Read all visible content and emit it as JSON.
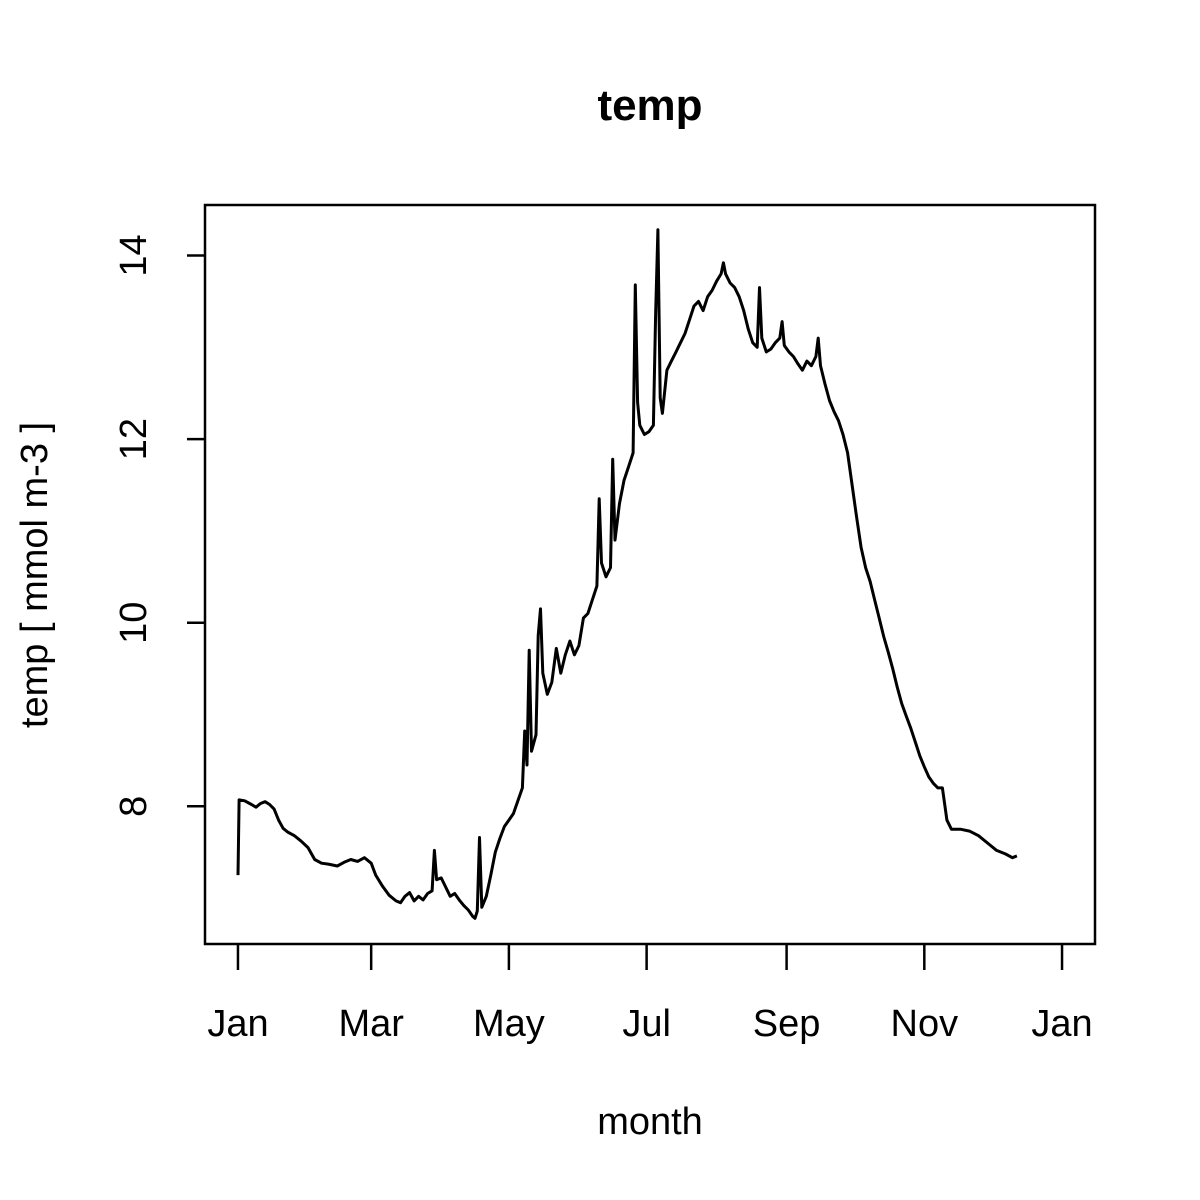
{
  "chart_data": {
    "type": "line",
    "title": "temp",
    "xlabel": "month",
    "ylabel": "temp [ mmol m-3 ]",
    "x_ticks": [
      {
        "label": "Jan",
        "day": 0
      },
      {
        "label": "Mar",
        "day": 59
      },
      {
        "label": "May",
        "day": 120
      },
      {
        "label": "Jul",
        "day": 181
      },
      {
        "label": "Sep",
        "day": 243
      },
      {
        "label": "Nov",
        "day": 304
      },
      {
        "label": "Jan",
        "day": 365
      }
    ],
    "y_ticks": [
      8,
      10,
      12,
      14
    ],
    "xlim": [
      -14.6,
      379.6
    ],
    "ylim": [
      6.5,
      14.55
    ],
    "grid": false,
    "legend": "none",
    "line_color": "#000000",
    "series": [
      {
        "points": [
          [
            0,
            7.25
          ],
          [
            0.5,
            8.07
          ],
          [
            3,
            8.06
          ],
          [
            6,
            8.02
          ],
          [
            8,
            7.99
          ],
          [
            10,
            8.03
          ],
          [
            12,
            8.05
          ],
          [
            14,
            8.02
          ],
          [
            16,
            7.97
          ],
          [
            18,
            7.85
          ],
          [
            20,
            7.76
          ],
          [
            22,
            7.72
          ],
          [
            25,
            7.68
          ],
          [
            28,
            7.62
          ],
          [
            31,
            7.55
          ],
          [
            34,
            7.42
          ],
          [
            37,
            7.38
          ],
          [
            40,
            7.37
          ],
          [
            44,
            7.35
          ],
          [
            47,
            7.39
          ],
          [
            50,
            7.42
          ],
          [
            53,
            7.4
          ],
          [
            56,
            7.44
          ],
          [
            59,
            7.38
          ],
          [
            61,
            7.25
          ],
          [
            64,
            7.13
          ],
          [
            67,
            7.03
          ],
          [
            70,
            6.97
          ],
          [
            72,
            6.95
          ],
          [
            74,
            7.02
          ],
          [
            76,
            7.06
          ],
          [
            78,
            6.97
          ],
          [
            80,
            7.02
          ],
          [
            82,
            6.98
          ],
          [
            84,
            7.05
          ],
          [
            86,
            7.08
          ],
          [
            87,
            7.52
          ],
          [
            88,
            7.2
          ],
          [
            90,
            7.22
          ],
          [
            92,
            7.12
          ],
          [
            94,
            7.02
          ],
          [
            96,
            7.05
          ],
          [
            98,
            6.98
          ],
          [
            100,
            6.92
          ],
          [
            102,
            6.87
          ],
          [
            104,
            6.8
          ],
          [
            105,
            6.78
          ],
          [
            106,
            6.86
          ],
          [
            107,
            7.66
          ],
          [
            108,
            6.9
          ],
          [
            110,
            7.02
          ],
          [
            112,
            7.25
          ],
          [
            114,
            7.5
          ],
          [
            116,
            7.65
          ],
          [
            118,
            7.78
          ],
          [
            120,
            7.85
          ],
          [
            122,
            7.92
          ],
          [
            124,
            8.06
          ],
          [
            126,
            8.2
          ],
          [
            127,
            8.82
          ],
          [
            128,
            8.45
          ],
          [
            129,
            9.7
          ],
          [
            130,
            8.6
          ],
          [
            132,
            8.78
          ],
          [
            133,
            9.86
          ],
          [
            134,
            10.15
          ],
          [
            135,
            9.45
          ],
          [
            137,
            9.22
          ],
          [
            139,
            9.35
          ],
          [
            141,
            9.72
          ],
          [
            143,
            9.45
          ],
          [
            145,
            9.65
          ],
          [
            147,
            9.8
          ],
          [
            149,
            9.65
          ],
          [
            151,
            9.75
          ],
          [
            153,
            10.05
          ],
          [
            155,
            10.1
          ],
          [
            157,
            10.25
          ],
          [
            159,
            10.4
          ],
          [
            160,
            11.35
          ],
          [
            161,
            10.65
          ],
          [
            163,
            10.5
          ],
          [
            165,
            10.6
          ],
          [
            166,
            11.78
          ],
          [
            167,
            10.9
          ],
          [
            169,
            11.3
          ],
          [
            171,
            11.55
          ],
          [
            173,
            11.7
          ],
          [
            175,
            11.85
          ],
          [
            176,
            13.68
          ],
          [
            177,
            12.4
          ],
          [
            178,
            12.15
          ],
          [
            180,
            12.05
          ],
          [
            182,
            12.08
          ],
          [
            184,
            12.15
          ],
          [
            185,
            13.35
          ],
          [
            186,
            14.28
          ],
          [
            187,
            12.45
          ],
          [
            188,
            12.28
          ],
          [
            190,
            12.75
          ],
          [
            192,
            12.85
          ],
          [
            194,
            12.95
          ],
          [
            196,
            13.05
          ],
          [
            198,
            13.15
          ],
          [
            200,
            13.3
          ],
          [
            202,
            13.45
          ],
          [
            204,
            13.5
          ],
          [
            206,
            13.4
          ],
          [
            208,
            13.55
          ],
          [
            210,
            13.62
          ],
          [
            212,
            13.72
          ],
          [
            214,
            13.8
          ],
          [
            215,
            13.92
          ],
          [
            216,
            13.8
          ],
          [
            218,
            13.7
          ],
          [
            220,
            13.65
          ],
          [
            222,
            13.55
          ],
          [
            224,
            13.4
          ],
          [
            226,
            13.2
          ],
          [
            228,
            13.05
          ],
          [
            230,
            13.0
          ],
          [
            231,
            13.65
          ],
          [
            232,
            13.1
          ],
          [
            234,
            12.95
          ],
          [
            236,
            12.98
          ],
          [
            238,
            13.05
          ],
          [
            240,
            13.1
          ],
          [
            241,
            13.28
          ],
          [
            242,
            13.02
          ],
          [
            244,
            12.95
          ],
          [
            246,
            12.9
          ],
          [
            248,
            12.82
          ],
          [
            250,
            12.75
          ],
          [
            252,
            12.85
          ],
          [
            254,
            12.8
          ],
          [
            256,
            12.9
          ],
          [
            257,
            13.1
          ],
          [
            258,
            12.8
          ],
          [
            260,
            12.6
          ],
          [
            262,
            12.42
          ],
          [
            264,
            12.3
          ],
          [
            266,
            12.2
          ],
          [
            268,
            12.05
          ],
          [
            270,
            11.85
          ],
          [
            272,
            11.5
          ],
          [
            274,
            11.15
          ],
          [
            276,
            10.82
          ],
          [
            278,
            10.6
          ],
          [
            280,
            10.45
          ],
          [
            282,
            10.25
          ],
          [
            284,
            10.05
          ],
          [
            286,
            9.85
          ],
          [
            288,
            9.68
          ],
          [
            290,
            9.5
          ],
          [
            292,
            9.3
          ],
          [
            294,
            9.12
          ],
          [
            296,
            8.98
          ],
          [
            298,
            8.85
          ],
          [
            300,
            8.7
          ],
          [
            302,
            8.55
          ],
          [
            304,
            8.43
          ],
          [
            306,
            8.32
          ],
          [
            308,
            8.25
          ],
          [
            310,
            8.2
          ],
          [
            312,
            8.2
          ],
          [
            314,
            7.85
          ],
          [
            316,
            7.75
          ],
          [
            320,
            7.75
          ],
          [
            324,
            7.73
          ],
          [
            328,
            7.68
          ],
          [
            332,
            7.6
          ],
          [
            336,
            7.52
          ],
          [
            340,
            7.48
          ],
          [
            343,
            7.44
          ],
          [
            345,
            7.46
          ]
        ]
      }
    ]
  }
}
